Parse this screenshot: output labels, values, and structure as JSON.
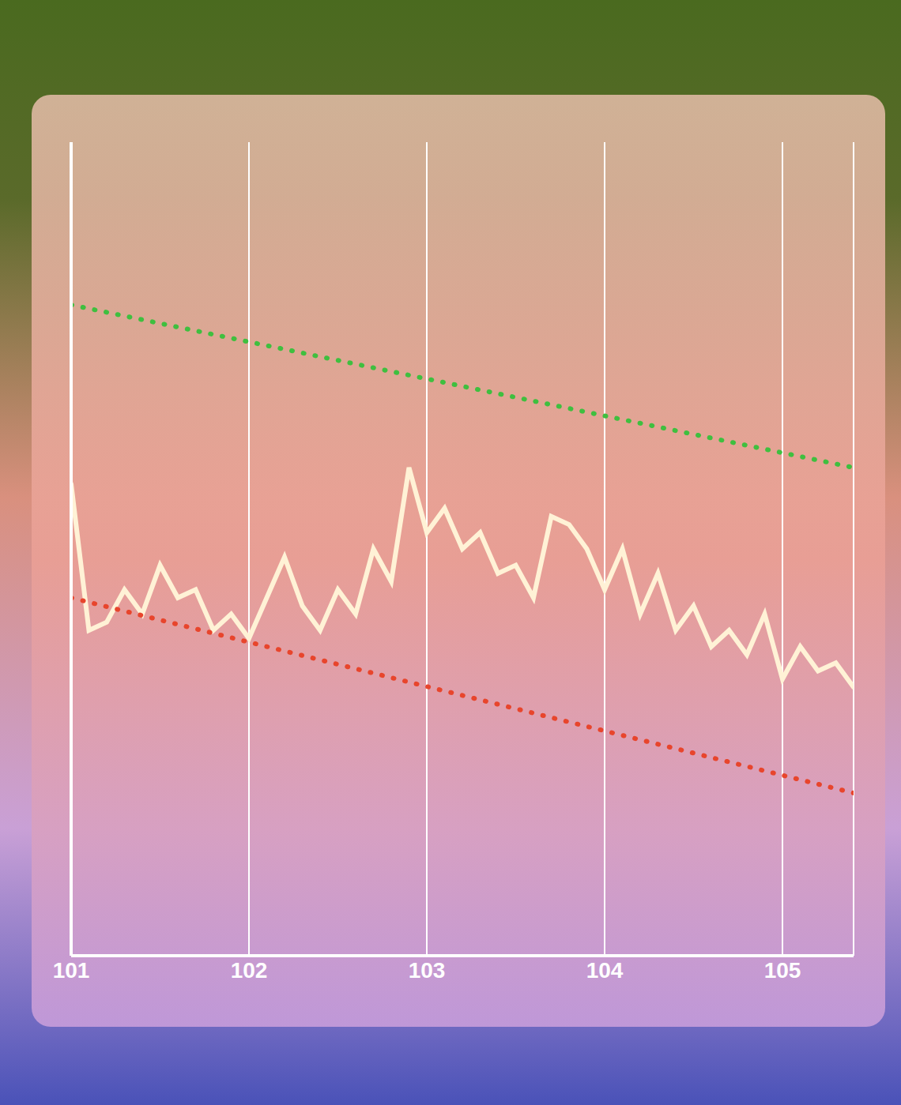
{
  "chart_data": {
    "type": "line",
    "x": [
      101.0,
      101.1,
      101.2,
      101.3,
      101.4,
      101.5,
      101.6,
      101.7,
      101.8,
      101.9,
      102.0,
      102.1,
      102.2,
      102.3,
      102.4,
      102.5,
      102.6,
      102.7,
      102.8,
      102.9,
      103.0,
      103.1,
      103.2,
      103.3,
      103.4,
      103.5,
      103.6,
      103.7,
      103.8,
      103.9,
      104.0,
      104.1,
      104.2,
      104.3,
      104.4,
      104.5,
      104.6,
      104.7,
      104.8,
      104.9,
      105.0,
      105.1,
      105.2,
      105.3,
      105.4
    ],
    "series": [
      {
        "color": "#fff2d6",
        "values": [
          58,
          40,
          41,
          45,
          42,
          48,
          44,
          45,
          40,
          42,
          39,
          44,
          49,
          43,
          40,
          45,
          42,
          50,
          46,
          60,
          52,
          55,
          50,
          52,
          47,
          48,
          44,
          54,
          53,
          50,
          45,
          50,
          42,
          47,
          40,
          43,
          38,
          40,
          37,
          42,
          34,
          38,
          35,
          36,
          33
        ]
      },
      {
        "color": "#3fbf3f",
        "line_style": "dotted",
        "x": [
          101,
          105.4
        ],
        "values": [
          80,
          60
        ]
      },
      {
        "color": "#e8452c",
        "line_style": "dotted",
        "x": [
          101,
          105.4
        ],
        "values": [
          44,
          20
        ]
      }
    ],
    "xlim": [
      101,
      105.4
    ],
    "xticks": [
      101,
      102,
      103,
      104,
      105
    ],
    "ylim": [
      0,
      100
    ],
    "tick_labels": "x",
    "grid": "x"
  }
}
